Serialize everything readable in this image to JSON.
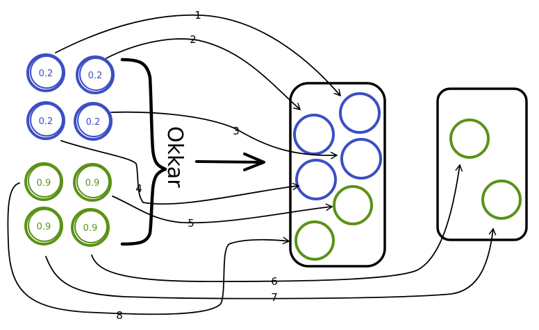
{
  "colors": {
    "blue": "#3b4fc4",
    "green": "#5a9216",
    "ink": "#000000"
  },
  "brace_label": "Okkar",
  "nodes": {
    "blue": [
      "0.2",
      "0.2",
      "0.2",
      "0.2"
    ],
    "green": [
      "0.9",
      "0.9",
      "0.9",
      "0.9"
    ]
  },
  "arrows": [
    "1",
    "2",
    "3",
    "4",
    "5",
    "6",
    "7",
    "8"
  ]
}
